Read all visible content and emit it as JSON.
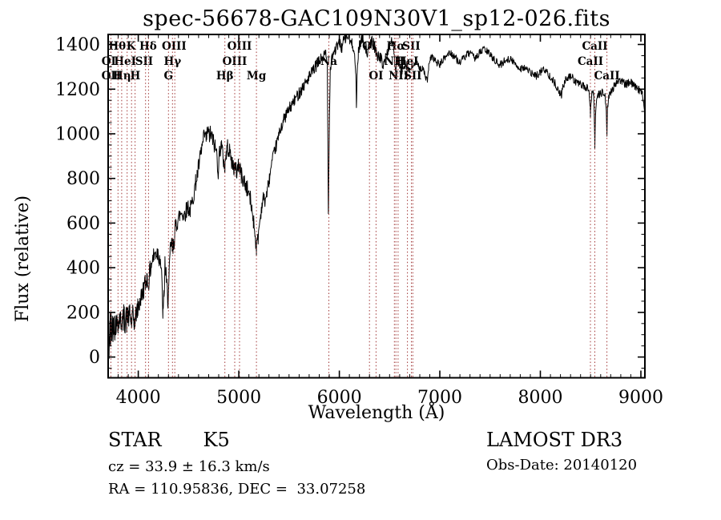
{
  "title": "spec-56678-GAC109N30V1_sp12-026.fits",
  "footer": {
    "class_label": "STAR",
    "subclass": "K5",
    "cz_line": "cz = 33.9 ± 16.3 km/s",
    "radec_line": "RA = 110.95836, DEC =  33.07258",
    "survey": "LAMOST DR3",
    "obs_date_line": "Obs-Date: 20140120"
  },
  "chart_data": {
    "type": "line",
    "title": "spec-56678-GAC109N30V1_sp12-026.fits",
    "xlabel": "Wavelength (Å)",
    "ylabel": "Flux (relative)",
    "xlim": [
      3700,
      9040
    ],
    "ylim": [
      -93,
      1445
    ],
    "x_major_ticks": [
      4000,
      5000,
      6000,
      7000,
      8000,
      9000
    ],
    "x_minor_step": 100,
    "y_major_ticks": [
      0,
      200,
      400,
      600,
      800,
      1000,
      1200,
      1400
    ],
    "y_minor_step": 50,
    "grid": false,
    "legend": "none",
    "spectrum_color": "#000000",
    "marker_line_color": "#a13737",
    "line_markers": [
      {
        "label": "Hθ",
        "wavelength": 3790,
        "row": 1
      },
      {
        "label": "K",
        "wavelength": 3928,
        "row": 1
      },
      {
        "label": "Hδ",
        "wavelength": 4098,
        "row": 1
      },
      {
        "label": "OIII",
        "wavelength": 4356,
        "row": 1
      },
      {
        "label": "OIII",
        "wavelength": 5007,
        "row": 1
      },
      {
        "label": "OI",
        "wavelength": 6300,
        "row": 1
      },
      {
        "label": "Hα",
        "wavelength": 6563,
        "row": 1
      },
      {
        "label": "SII",
        "wavelength": 6717,
        "row": 1
      },
      {
        "label": "CaII",
        "wavelength": 8542,
        "row": 1
      },
      {
        "label": "OI",
        "wavelength": 3706,
        "row": 2
      },
      {
        "label": "HeI",
        "wavelength": 3868,
        "row": 2
      },
      {
        "label": "SII",
        "wavelength": 4058,
        "row": 2
      },
      {
        "label": "Hγ",
        "wavelength": 4340,
        "row": 2
      },
      {
        "label": "OIII",
        "wavelength": 4959,
        "row": 2
      },
      {
        "label": "Na",
        "wavelength": 5896,
        "row": 2
      },
      {
        "label": "NII",
        "wavelength": 6548,
        "row": 2
      },
      {
        "label": "HeI",
        "wavelength": 6678,
        "row": 2
      },
      {
        "label": "CaII",
        "wavelength": 8498,
        "row": 2
      },
      {
        "label": "OII",
        "wavelength": 3730,
        "row": 3
      },
      {
        "label": "Hη",
        "wavelength": 3838,
        "row": 3
      },
      {
        "label": "H",
        "wavelength": 3970,
        "row": 3
      },
      {
        "label": "G",
        "wavelength": 4300,
        "row": 3
      },
      {
        "label": "Hβ",
        "wavelength": 4861,
        "row": 3
      },
      {
        "label": "Mg",
        "wavelength": 5175,
        "row": 3
      },
      {
        "label": "OI",
        "wavelength": 6365,
        "row": 3
      },
      {
        "label": "NII",
        "wavelength": 6590,
        "row": 3
      },
      {
        "label": "SII",
        "wavelength": 6731,
        "row": 3
      },
      {
        "label": "CaII",
        "wavelength": 8662,
        "row": 3
      }
    ],
    "dotted_lines": [
      3727,
      3798,
      3835,
      3889,
      3933,
      3968,
      4072,
      4102,
      4300,
      4340,
      4363,
      4861,
      4959,
      5007,
      5175,
      5896,
      6300,
      6365,
      6548,
      6563,
      6584,
      6678,
      6717,
      6731,
      8498,
      8542,
      8662
    ],
    "noise": {
      "seed": 42,
      "segments": [
        {
          "to": 3900,
          "amp": 62
        },
        {
          "to": 4400,
          "amp": 48
        },
        {
          "to": 5200,
          "amp": 40
        },
        {
          "to": 5900,
          "amp": 28
        },
        {
          "to": 6700,
          "amp": 26
        },
        {
          "to": 7600,
          "amp": 17
        },
        {
          "to": 9041,
          "amp": 18
        }
      ]
    },
    "spectrum_anchors": [
      [
        3700,
        20
      ],
      [
        3703,
        -45
      ],
      [
        3706,
        140
      ],
      [
        3709,
        -10
      ],
      [
        3712,
        120
      ],
      [
        3716,
        40
      ],
      [
        3720,
        150
      ],
      [
        3725,
        80
      ],
      [
        3730,
        170
      ],
      [
        3736,
        110
      ],
      [
        3742,
        160
      ],
      [
        3750,
        120
      ],
      [
        3758,
        170
      ],
      [
        3766,
        130
      ],
      [
        3775,
        160
      ],
      [
        3785,
        140
      ],
      [
        3795,
        175
      ],
      [
        3805,
        150
      ],
      [
        3815,
        185
      ],
      [
        3825,
        155
      ],
      [
        3835,
        175
      ],
      [
        3845,
        150
      ],
      [
        3855,
        180
      ],
      [
        3865,
        160
      ],
      [
        3875,
        185
      ],
      [
        3885,
        160
      ],
      [
        3895,
        195
      ],
      [
        3905,
        175
      ],
      [
        3915,
        195
      ],
      [
        3925,
        170
      ],
      [
        3933,
        150
      ],
      [
        3945,
        185
      ],
      [
        3955,
        165
      ],
      [
        3968,
        155
      ],
      [
        3980,
        200
      ],
      [
        3995,
        215
      ],
      [
        4010,
        240
      ],
      [
        4025,
        260
      ],
      [
        4040,
        285
      ],
      [
        4055,
        310
      ],
      [
        4070,
        330
      ],
      [
        4085,
        355
      ],
      [
        4100,
        330
      ],
      [
        4115,
        380
      ],
      [
        4130,
        420
      ],
      [
        4145,
        440
      ],
      [
        4160,
        455
      ],
      [
        4175,
        465
      ],
      [
        4190,
        470
      ],
      [
        4205,
        455
      ],
      [
        4220,
        440
      ],
      [
        4232,
        350
      ],
      [
        4245,
        195
      ],
      [
        4255,
        260
      ],
      [
        4265,
        420
      ],
      [
        4275,
        360
      ],
      [
        4285,
        310
      ],
      [
        4295,
        260
      ],
      [
        4305,
        330
      ],
      [
        4315,
        450
      ],
      [
        4325,
        510
      ],
      [
        4335,
        490
      ],
      [
        4345,
        480
      ],
      [
        4355,
        530
      ],
      [
        4365,
        560
      ],
      [
        4375,
        590
      ],
      [
        4390,
        615
      ],
      [
        4405,
        630
      ],
      [
        4420,
        640
      ],
      [
        4435,
        650
      ],
      [
        4450,
        635
      ],
      [
        4465,
        645
      ],
      [
        4480,
        660
      ],
      [
        4495,
        675
      ],
      [
        4510,
        655
      ],
      [
        4525,
        670
      ],
      [
        4540,
        700
      ],
      [
        4555,
        740
      ],
      [
        4570,
        780
      ],
      [
        4585,
        810
      ],
      [
        4600,
        850
      ],
      [
        4615,
        890
      ],
      [
        4630,
        930
      ],
      [
        4645,
        960
      ],
      [
        4660,
        1000
      ],
      [
        4675,
        975
      ],
      [
        4690,
        1015
      ],
      [
        4705,
        990
      ],
      [
        4720,
        1000
      ],
      [
        4735,
        985
      ],
      [
        4750,
        960
      ],
      [
        4765,
        940
      ],
      [
        4780,
        915
      ],
      [
        4795,
        830
      ],
      [
        4810,
        930
      ],
      [
        4825,
        950
      ],
      [
        4840,
        905
      ],
      [
        4855,
        865
      ],
      [
        4861,
        845
      ],
      [
        4875,
        915
      ],
      [
        4890,
        945
      ],
      [
        4905,
        920
      ],
      [
        4920,
        895
      ],
      [
        4935,
        870
      ],
      [
        4950,
        850
      ],
      [
        4965,
        840
      ],
      [
        4980,
        830
      ],
      [
        4995,
        865
      ],
      [
        5010,
        845
      ],
      [
        5025,
        815
      ],
      [
        5040,
        800
      ],
      [
        5055,
        785
      ],
      [
        5070,
        765
      ],
      [
        5085,
        750
      ],
      [
        5100,
        735
      ],
      [
        5115,
        705
      ],
      [
        5130,
        660
      ],
      [
        5145,
        615
      ],
      [
        5160,
        560
      ],
      [
        5175,
        490
      ],
      [
        5188,
        525
      ],
      [
        5200,
        575
      ],
      [
        5215,
        630
      ],
      [
        5230,
        680
      ],
      [
        5245,
        715
      ],
      [
        5260,
        700
      ],
      [
        5275,
        725
      ],
      [
        5290,
        765
      ],
      [
        5305,
        800
      ],
      [
        5320,
        845
      ],
      [
        5340,
        890
      ],
      [
        5360,
        930
      ],
      [
        5380,
        960
      ],
      [
        5400,
        995
      ],
      [
        5420,
        1030
      ],
      [
        5445,
        1060
      ],
      [
        5470,
        1085
      ],
      [
        5495,
        1105
      ],
      [
        5520,
        1125
      ],
      [
        5550,
        1145
      ],
      [
        5580,
        1170
      ],
      [
        5610,
        1190
      ],
      [
        5650,
        1220
      ],
      [
        5690,
        1245
      ],
      [
        5730,
        1275
      ],
      [
        5770,
        1305
      ],
      [
        5810,
        1330
      ],
      [
        5840,
        1345
      ],
      [
        5865,
        1355
      ],
      [
        5880,
        1310
      ],
      [
        5886,
        950
      ],
      [
        5891,
        660
      ],
      [
        5896,
        800
      ],
      [
        5902,
        1100
      ],
      [
        5910,
        1290
      ],
      [
        5925,
        1345
      ],
      [
        5945,
        1365
      ],
      [
        5965,
        1380
      ],
      [
        5985,
        1395
      ],
      [
        6005,
        1405
      ],
      [
        6025,
        1385
      ],
      [
        6045,
        1420
      ],
      [
        6065,
        1430
      ],
      [
        6085,
        1435
      ],
      [
        6105,
        1415
      ],
      [
        6125,
        1400
      ],
      [
        6145,
        1390
      ],
      [
        6162,
        1280
      ],
      [
        6170,
        1120
      ],
      [
        6178,
        1290
      ],
      [
        6190,
        1370
      ],
      [
        6205,
        1405
      ],
      [
        6220,
        1420
      ],
      [
        6235,
        1425
      ],
      [
        6250,
        1400
      ],
      [
        6265,
        1385
      ],
      [
        6280,
        1360
      ],
      [
        6295,
        1385
      ],
      [
        6310,
        1405
      ],
      [
        6325,
        1415
      ],
      [
        6340,
        1405
      ],
      [
        6355,
        1380
      ],
      [
        6370,
        1365
      ],
      [
        6385,
        1340
      ],
      [
        6400,
        1350
      ],
      [
        6415,
        1335
      ],
      [
        6430,
        1310
      ],
      [
        6445,
        1320
      ],
      [
        6460,
        1340
      ],
      [
        6475,
        1360
      ],
      [
        6490,
        1385
      ],
      [
        6505,
        1405
      ],
      [
        6520,
        1420
      ],
      [
        6535,
        1395
      ],
      [
        6548,
        1340
      ],
      [
        6556,
        1300
      ],
      [
        6563,
        1255
      ],
      [
        6572,
        1310
      ],
      [
        6584,
        1330
      ],
      [
        6600,
        1305
      ],
      [
        6615,
        1285
      ],
      [
        6630,
        1295
      ],
      [
        6645,
        1310
      ],
      [
        6660,
        1320
      ],
      [
        6675,
        1305
      ],
      [
        6690,
        1290
      ],
      [
        6705,
        1280
      ],
      [
        6720,
        1295
      ],
      [
        6740,
        1310
      ],
      [
        6760,
        1320
      ],
      [
        6785,
        1305
      ],
      [
        6810,
        1295
      ],
      [
        6835,
        1285
      ],
      [
        6860,
        1255
      ],
      [
        6875,
        1235
      ],
      [
        6890,
        1300
      ],
      [
        6905,
        1330
      ],
      [
        6920,
        1345
      ],
      [
        6940,
        1335
      ],
      [
        6960,
        1325
      ],
      [
        6980,
        1315
      ],
      [
        7000,
        1310
      ],
      [
        7025,
        1325
      ],
      [
        7050,
        1340
      ],
      [
        7075,
        1355
      ],
      [
        7100,
        1365
      ],
      [
        7125,
        1355
      ],
      [
        7150,
        1345
      ],
      [
        7175,
        1330
      ],
      [
        7200,
        1320
      ],
      [
        7230,
        1335
      ],
      [
        7260,
        1350
      ],
      [
        7290,
        1360
      ],
      [
        7320,
        1350
      ],
      [
        7350,
        1340
      ],
      [
        7380,
        1355
      ],
      [
        7410,
        1368
      ],
      [
        7440,
        1380
      ],
      [
        7470,
        1368
      ],
      [
        7500,
        1355
      ],
      [
        7530,
        1340
      ],
      [
        7560,
        1325
      ],
      [
        7590,
        1305
      ],
      [
        7620,
        1315
      ],
      [
        7650,
        1328
      ],
      [
        7680,
        1338
      ],
      [
        7710,
        1330
      ],
      [
        7740,
        1318
      ],
      [
        7770,
        1305
      ],
      [
        7800,
        1292
      ],
      [
        7830,
        1298
      ],
      [
        7860,
        1290
      ],
      [
        7890,
        1278
      ],
      [
        7920,
        1268
      ],
      [
        7950,
        1258
      ],
      [
        7980,
        1268
      ],
      [
        8010,
        1280
      ],
      [
        8040,
        1290
      ],
      [
        8070,
        1272
      ],
      [
        8100,
        1258
      ],
      [
        8130,
        1235
      ],
      [
        8160,
        1215
      ],
      [
        8190,
        1185
      ],
      [
        8210,
        1175
      ],
      [
        8230,
        1215
      ],
      [
        8250,
        1240
      ],
      [
        8280,
        1252
      ],
      [
        8310,
        1255
      ],
      [
        8340,
        1240
      ],
      [
        8370,
        1228
      ],
      [
        8400,
        1220
      ],
      [
        8430,
        1212
      ],
      [
        8460,
        1205
      ],
      [
        8485,
        1195
      ],
      [
        8493,
        1140
      ],
      [
        8498,
        1085
      ],
      [
        8504,
        1150
      ],
      [
        8515,
        1185
      ],
      [
        8530,
        1175
      ],
      [
        8537,
        1080
      ],
      [
        8542,
        945
      ],
      [
        8548,
        1070
      ],
      [
        8560,
        1165
      ],
      [
        8580,
        1175
      ],
      [
        8600,
        1182
      ],
      [
        8620,
        1185
      ],
      [
        8640,
        1178
      ],
      [
        8656,
        1120
      ],
      [
        8662,
        1000
      ],
      [
        8668,
        1110
      ],
      [
        8680,
        1165
      ],
      [
        8700,
        1185
      ],
      [
        8725,
        1205
      ],
      [
        8750,
        1225
      ],
      [
        8775,
        1238
      ],
      [
        8800,
        1242
      ],
      [
        8825,
        1230
      ],
      [
        8850,
        1222
      ],
      [
        8875,
        1228
      ],
      [
        8900,
        1232
      ],
      [
        8925,
        1218
      ],
      [
        8950,
        1205
      ],
      [
        8975,
        1198
      ],
      [
        9000,
        1192
      ],
      [
        9015,
        1185
      ],
      [
        9030,
        1140
      ],
      [
        9040,
        1060
      ]
    ]
  }
}
